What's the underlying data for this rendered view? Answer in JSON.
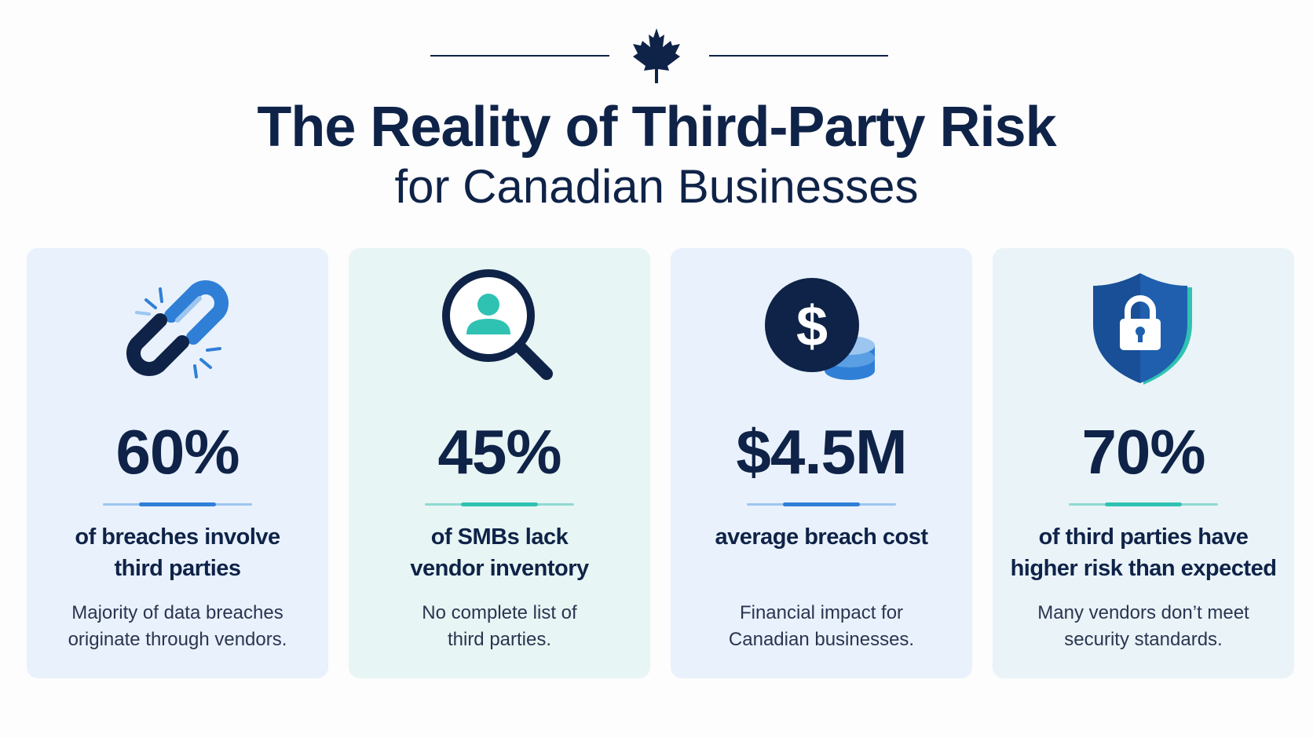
{
  "header": {
    "icon": "maple-leaf-icon",
    "title": "The Reality of Third-Party Risk",
    "subtitle": "for Canadian Businesses"
  },
  "colors": {
    "navy": "#0f2348",
    "blue": "#2f7fd6",
    "teal": "#2fc2b2",
    "card_blue": "#e9f1fc",
    "card_teal": "#e7f5f4"
  },
  "cards": [
    {
      "icon": "broken-chain-icon",
      "stat": "60%",
      "label_line1": "of breaches involve",
      "label_line2": "third parties",
      "desc_line1": "Majority of data breaches",
      "desc_line2": "originate through vendors.",
      "accent": "#2f7fd6"
    },
    {
      "icon": "magnifier-person-icon",
      "stat": "45%",
      "label_line1": "of SMBs lack",
      "label_line2": "vendor inventory",
      "desc_line1": "No complete list of",
      "desc_line2": "third parties.",
      "accent": "#2fc2b2"
    },
    {
      "icon": "dollar-coins-icon",
      "stat": "$4.5M",
      "label_line1": "average breach cost",
      "label_line2": "",
      "desc_line1": "Financial impact for",
      "desc_line2": "Canadian businesses.",
      "accent": "#2f7fd6"
    },
    {
      "icon": "shield-lock-icon",
      "stat": "70%",
      "label_line1": "of third parties have",
      "label_line2": "higher risk than expected",
      "desc_line1": "Many vendors don’t meet",
      "desc_line2": "security standards.",
      "accent": "#2fc2b2"
    }
  ]
}
